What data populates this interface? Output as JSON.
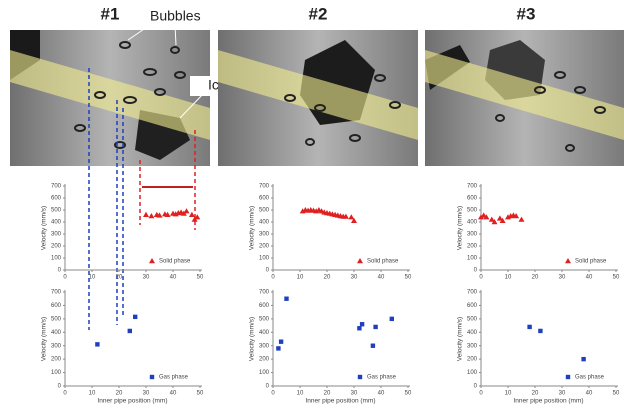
{
  "photos": [
    {
      "title": "#1",
      "labels": [
        "Bubbles",
        "Ice"
      ]
    },
    {
      "title": "#2"
    },
    {
      "title": "#3"
    }
  ],
  "chart_data": [
    {
      "type": "scatter",
      "ylabel": "Velocity (mm/s)",
      "xlim": [
        0,
        50
      ],
      "xticks": [
        0,
        10,
        20,
        30,
        40,
        50
      ],
      "ylim": [
        0,
        700
      ],
      "yticks": [
        0,
        100,
        200,
        300,
        400,
        500,
        600,
        700
      ],
      "legend": "lower right",
      "series": [
        {
          "name": "Solid phase",
          "color": "#e02020",
          "marker": "triangle",
          "x": [
            30,
            32,
            34,
            35,
            37,
            38,
            40,
            41,
            42,
            43,
            44,
            45,
            47,
            48,
            49
          ],
          "values": [
            460,
            450,
            460,
            455,
            465,
            460,
            470,
            465,
            475,
            480,
            470,
            490,
            460,
            420,
            440
          ]
        }
      ]
    },
    {
      "type": "scatter",
      "ylabel": "Velocity (mm/s)",
      "xlabel": "Inner pipe position (mm)",
      "xlim": [
        0,
        50
      ],
      "xticks": [
        0,
        10,
        20,
        30,
        40,
        50
      ],
      "ylim": [
        0,
        700
      ],
      "yticks": [
        0,
        100,
        200,
        300,
        400,
        500,
        600,
        700
      ],
      "legend": "lower right",
      "series": [
        {
          "name": "Gas phase",
          "color": "#1f3fbf",
          "marker": "square",
          "x": [
            12,
            24,
            26
          ],
          "values": [
            310,
            410,
            515
          ]
        }
      ]
    },
    {
      "type": "scatter",
      "ylabel": "Velocity (mm/s)",
      "xlim": [
        0,
        50
      ],
      "xticks": [
        0,
        10,
        20,
        30,
        40,
        50
      ],
      "ylim": [
        0,
        700
      ],
      "yticks": [
        0,
        100,
        200,
        300,
        400,
        500,
        600,
        700
      ],
      "legend": "lower right",
      "series": [
        {
          "name": "Solid phase",
          "color": "#e02020",
          "marker": "triangle",
          "x": [
            11,
            12,
            13,
            14,
            15,
            16,
            17,
            18,
            19,
            20,
            21,
            22,
            23,
            24,
            25,
            26,
            27,
            29,
            30
          ],
          "values": [
            490,
            500,
            495,
            500,
            495,
            490,
            500,
            490,
            480,
            475,
            470,
            465,
            460,
            455,
            450,
            445,
            445,
            440,
            410
          ]
        }
      ]
    },
    {
      "type": "scatter",
      "ylabel": "Velocity (mm/s)",
      "xlabel": "Inner pipe position (mm)",
      "xlim": [
        0,
        50
      ],
      "xticks": [
        0,
        10,
        20,
        30,
        40,
        50
      ],
      "ylim": [
        0,
        700
      ],
      "yticks": [
        0,
        100,
        200,
        300,
        400,
        500,
        600,
        700
      ],
      "legend": "lower right",
      "series": [
        {
          "name": "Gas phase",
          "color": "#1f3fbf",
          "marker": "square",
          "x": [
            2,
            3,
            5,
            32,
            33,
            37,
            38,
            44
          ],
          "values": [
            280,
            330,
            650,
            430,
            460,
            300,
            440,
            500
          ]
        }
      ]
    },
    {
      "type": "scatter",
      "ylabel": "Velocity (mm/s)",
      "xlim": [
        0,
        50
      ],
      "xticks": [
        0,
        10,
        20,
        30,
        40,
        50
      ],
      "ylim": [
        0,
        700
      ],
      "yticks": [
        0,
        100,
        200,
        300,
        400,
        500,
        600,
        700
      ],
      "legend": "lower right",
      "series": [
        {
          "name": "Solid phase",
          "color": "#e02020",
          "marker": "triangle",
          "x": [
            0,
            1,
            2,
            4,
            5,
            7,
            8,
            10,
            11,
            12,
            13,
            15
          ],
          "values": [
            440,
            455,
            440,
            420,
            400,
            430,
            410,
            440,
            450,
            455,
            450,
            420
          ]
        }
      ]
    },
    {
      "type": "scatter",
      "ylabel": "Velocity (mm/s)",
      "xlabel": "Inner pipe position (mm)",
      "xlim": [
        0,
        50
      ],
      "xticks": [
        0,
        10,
        20,
        30,
        40,
        50
      ],
      "ylim": [
        0,
        700
      ],
      "yticks": [
        0,
        100,
        200,
        300,
        400,
        500,
        600,
        700
      ],
      "legend": "lower right",
      "series": [
        {
          "name": "Gas phase",
          "color": "#1f3fbf",
          "marker": "square",
          "x": [
            18,
            22,
            38
          ],
          "values": [
            440,
            410,
            200
          ]
        }
      ]
    }
  ]
}
